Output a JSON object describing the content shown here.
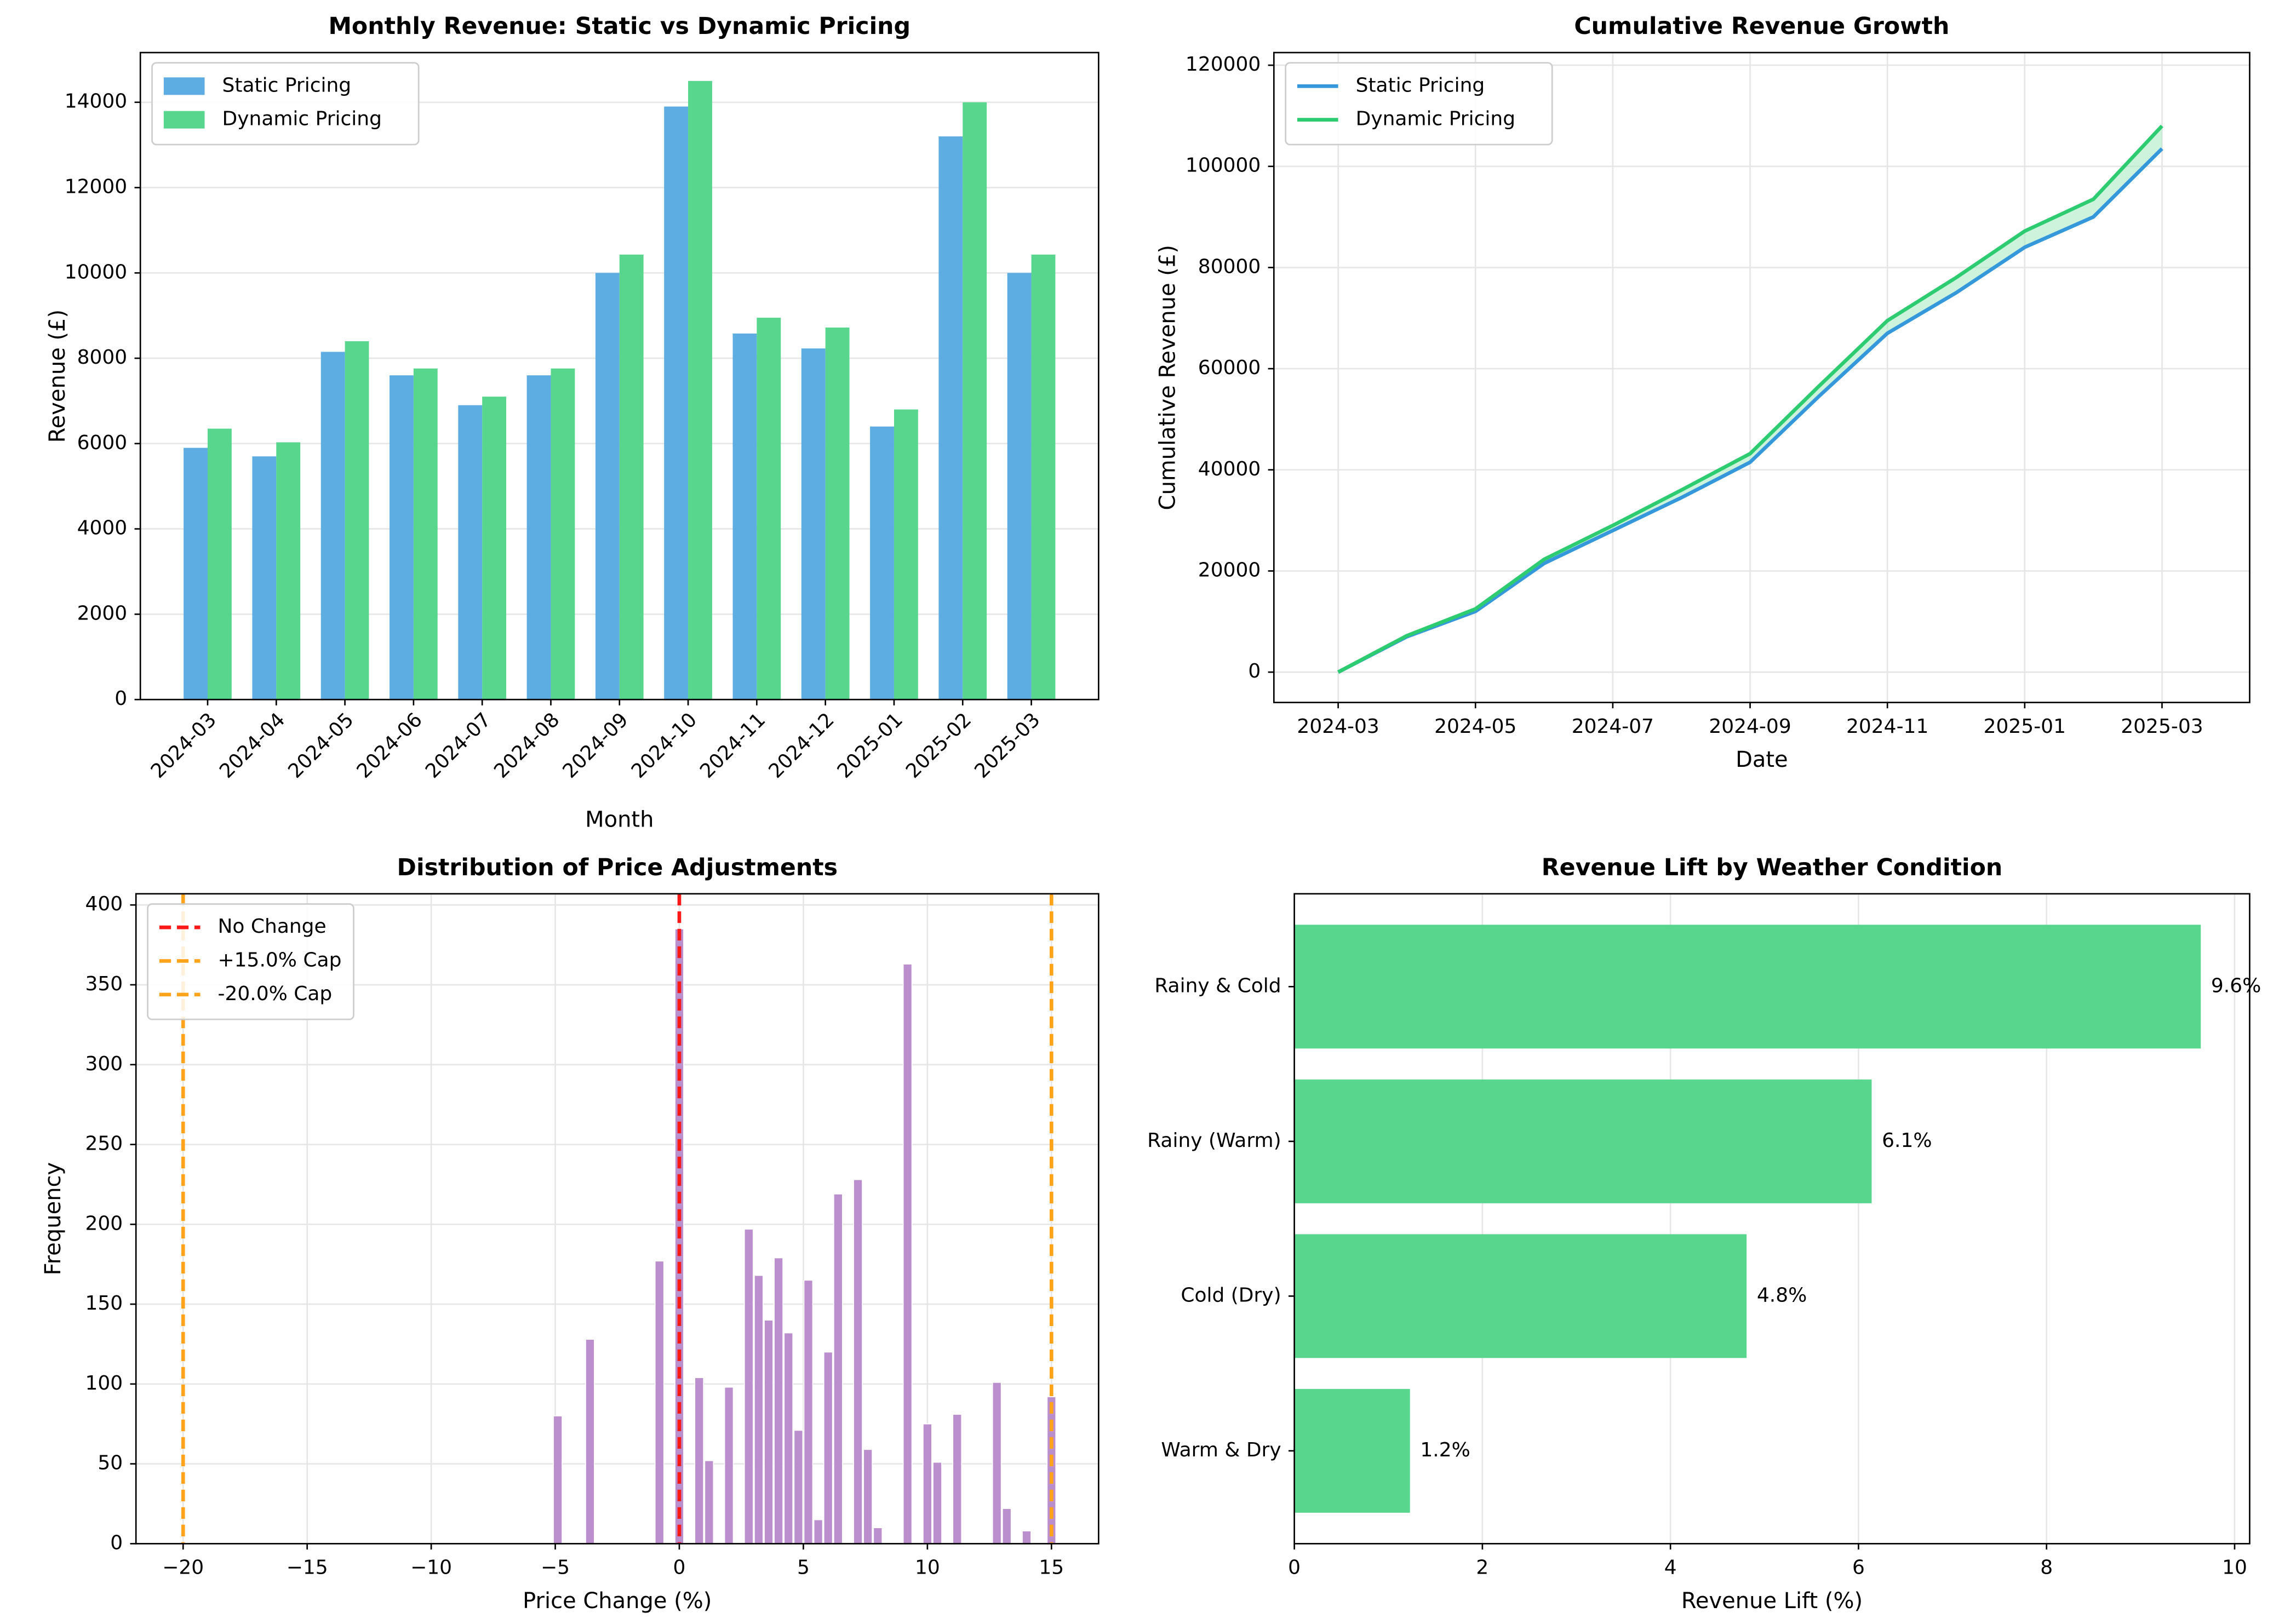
{
  "chart_data": [
    {
      "type": "bar",
      "title": "Monthly Revenue: Static vs Dynamic Pricing",
      "x_label": "Month",
      "y_label": "Revenue (£)",
      "categories": [
        "2024-03",
        "2024-04",
        "2024-05",
        "2024-06",
        "2024-07",
        "2024-08",
        "2024-09",
        "2024-10",
        "2024-11",
        "2024-12",
        "2025-01",
        "2025-02",
        "2025-03"
      ],
      "series": [
        {
          "name": "Static Pricing",
          "color": "#5dade2",
          "values": [
            5900,
            5700,
            8150,
            7600,
            6900,
            7600,
            10000,
            13900,
            8580,
            8230,
            6400,
            13200,
            10000
          ]
        },
        {
          "name": "Dynamic Pricing",
          "color": "#58d68d",
          "values": [
            6350,
            6030,
            8400,
            7760,
            7100,
            7760,
            10430,
            14500,
            8950,
            8720,
            6800,
            14000,
            10430
          ]
        }
      ],
      "ylim": [
        0,
        15165
      ],
      "yticks": [
        0,
        2000,
        4000,
        6000,
        8000,
        10000,
        12000,
        14000
      ],
      "grid": "y",
      "legend": "upper left"
    },
    {
      "type": "line",
      "title": "Cumulative Revenue Growth",
      "x_label": "Date",
      "y_label": "Cumulative Revenue (£)",
      "x": [
        "2024-03",
        "2024-04",
        "2024-05",
        "2024-06",
        "2024-07",
        "2024-08",
        "2024-09",
        "2024-10",
        "2024-11",
        "2024-12",
        "2025-01",
        "2025-02",
        "2025-03"
      ],
      "series": [
        {
          "name": "Static Pricing",
          "color": "#3498db",
          "values": [
            0,
            7000,
            12000,
            21500,
            28000,
            34500,
            41500,
            54500,
            67000,
            75000,
            84000,
            90000,
            103500
          ]
        },
        {
          "name": "Dynamic Pricing",
          "color": "#2ecc71",
          "values": [
            0,
            7200,
            12500,
            22300,
            29000,
            36000,
            43200,
            56500,
            69500,
            78000,
            87200,
            93500,
            108000
          ]
        }
      ],
      "fill_between": true,
      "fill_color": "#abebc6",
      "xticks": [
        "2024-03",
        "2024-05",
        "2024-07",
        "2024-09",
        "2024-11",
        "2025-01",
        "2025-03"
      ],
      "ylim": [
        -6000,
        122500
      ],
      "yticks": [
        0,
        20000,
        40000,
        60000,
        80000,
        100000,
        120000
      ],
      "grid": "both",
      "legend": "upper left"
    },
    {
      "type": "bar",
      "title": "Distribution of Price Adjustments",
      "x_label": "Price Change (%)",
      "y_label": "Frequency",
      "color": "#bb8fce",
      "x": [
        -4.9,
        -3.6,
        -0.8,
        0,
        0.8,
        1.2,
        2,
        2.8,
        3.2,
        3.6,
        4,
        4.4,
        4.8,
        5.2,
        5.6,
        6,
        6.4,
        7.2,
        7.6,
        8,
        9.2,
        10,
        10.4,
        11.2,
        12.8,
        13.2,
        14,
        15
      ],
      "values": [
        80,
        128,
        177,
        385,
        104,
        52,
        98,
        197,
        168,
        140,
        179,
        132,
        71,
        165,
        15,
        120,
        219,
        228,
        59,
        10,
        363,
        75,
        51,
        81,
        101,
        22,
        8,
        92
      ],
      "reference_lines": [
        {
          "name": "No Change",
          "value": 0,
          "color": "#ff1a1a"
        },
        {
          "name": "+15.0% Cap",
          "value": 15,
          "color": "#ffa31a"
        },
        {
          "name": "-20.0% Cap",
          "value": -20,
          "color": "#ffa31a"
        }
      ],
      "xlim": [
        -21.9,
        16.9
      ],
      "xticks": [
        {
          "value": -20,
          "label": "−20"
        },
        {
          "value": -15,
          "label": "−15"
        },
        {
          "value": -10,
          "label": "−10"
        },
        {
          "value": -5,
          "label": "−5"
        },
        0,
        5,
        10,
        15
      ],
      "ylim": [
        0,
        407
      ],
      "yticks": [
        0,
        50,
        100,
        150,
        200,
        250,
        300,
        350,
        400
      ],
      "grid": "both",
      "legend": "upper left"
    },
    {
      "type": "barh",
      "title": "Revenue Lift by Weather Condition",
      "x_label": "Revenue Lift (%)",
      "color": "#58d68d",
      "categories": [
        "Rainy & Cold",
        "Rainy (Warm)",
        "Cold (Dry)",
        "Warm & Dry"
      ],
      "values": [
        9.64,
        6.14,
        4.81,
        1.23
      ],
      "value_labels": [
        "9.6%",
        "6.1%",
        "4.8%",
        "1.2%"
      ],
      "xlim": [
        0,
        10.16
      ],
      "xticks": [
        0,
        2,
        4,
        6,
        8,
        10
      ],
      "grid": "x"
    }
  ]
}
